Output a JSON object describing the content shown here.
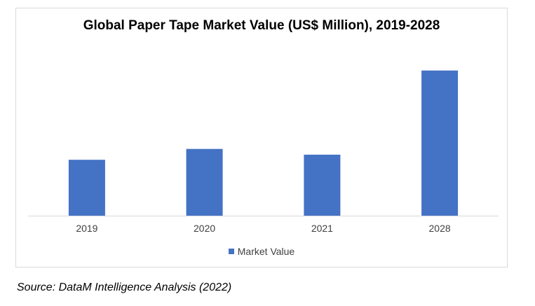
{
  "chart_data": {
    "type": "bar",
    "title": "Global Paper Tape Market Value (US$ Million), 2019-2028",
    "categories": [
      "2019",
      "2020",
      "2021",
      "2028"
    ],
    "series": [
      {
        "name": "Market Value",
        "values": [
          38.5,
          46.0,
          42.0,
          100.0
        ]
      }
    ],
    "xlabel": "",
    "ylabel": "",
    "ylim": [
      0,
      110
    ],
    "grid": false,
    "legend_position": "bottom",
    "bar_color": "#4472c4"
  },
  "source": "Source: DataM Intelligence Analysis (2022)"
}
